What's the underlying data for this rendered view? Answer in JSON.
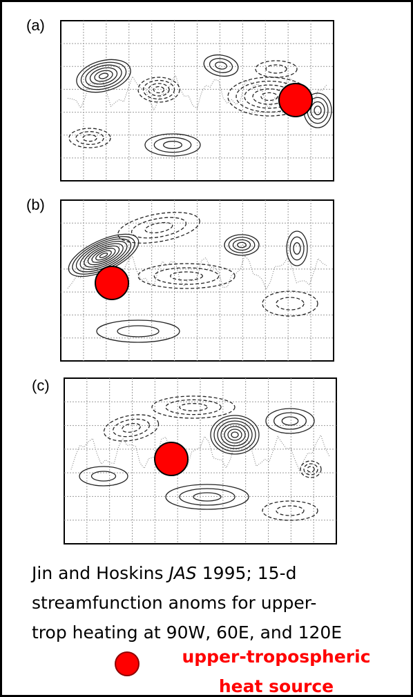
{
  "panels": [
    {
      "label": "(a)"
    },
    {
      "label": "(b)"
    },
    {
      "label": "(c)"
    }
  ],
  "caption": {
    "line1_before": "Jin and Hoskins ",
    "line1_italic": "JAS",
    "line1_after": " 1995; 15-d",
    "line2": "streamfunction anoms for upper-",
    "line3": "trop heating at 90W, 60E, and 120E"
  },
  "legend": {
    "lines": [
      "upper-tropospheric",
      "heat source"
    ]
  }
}
